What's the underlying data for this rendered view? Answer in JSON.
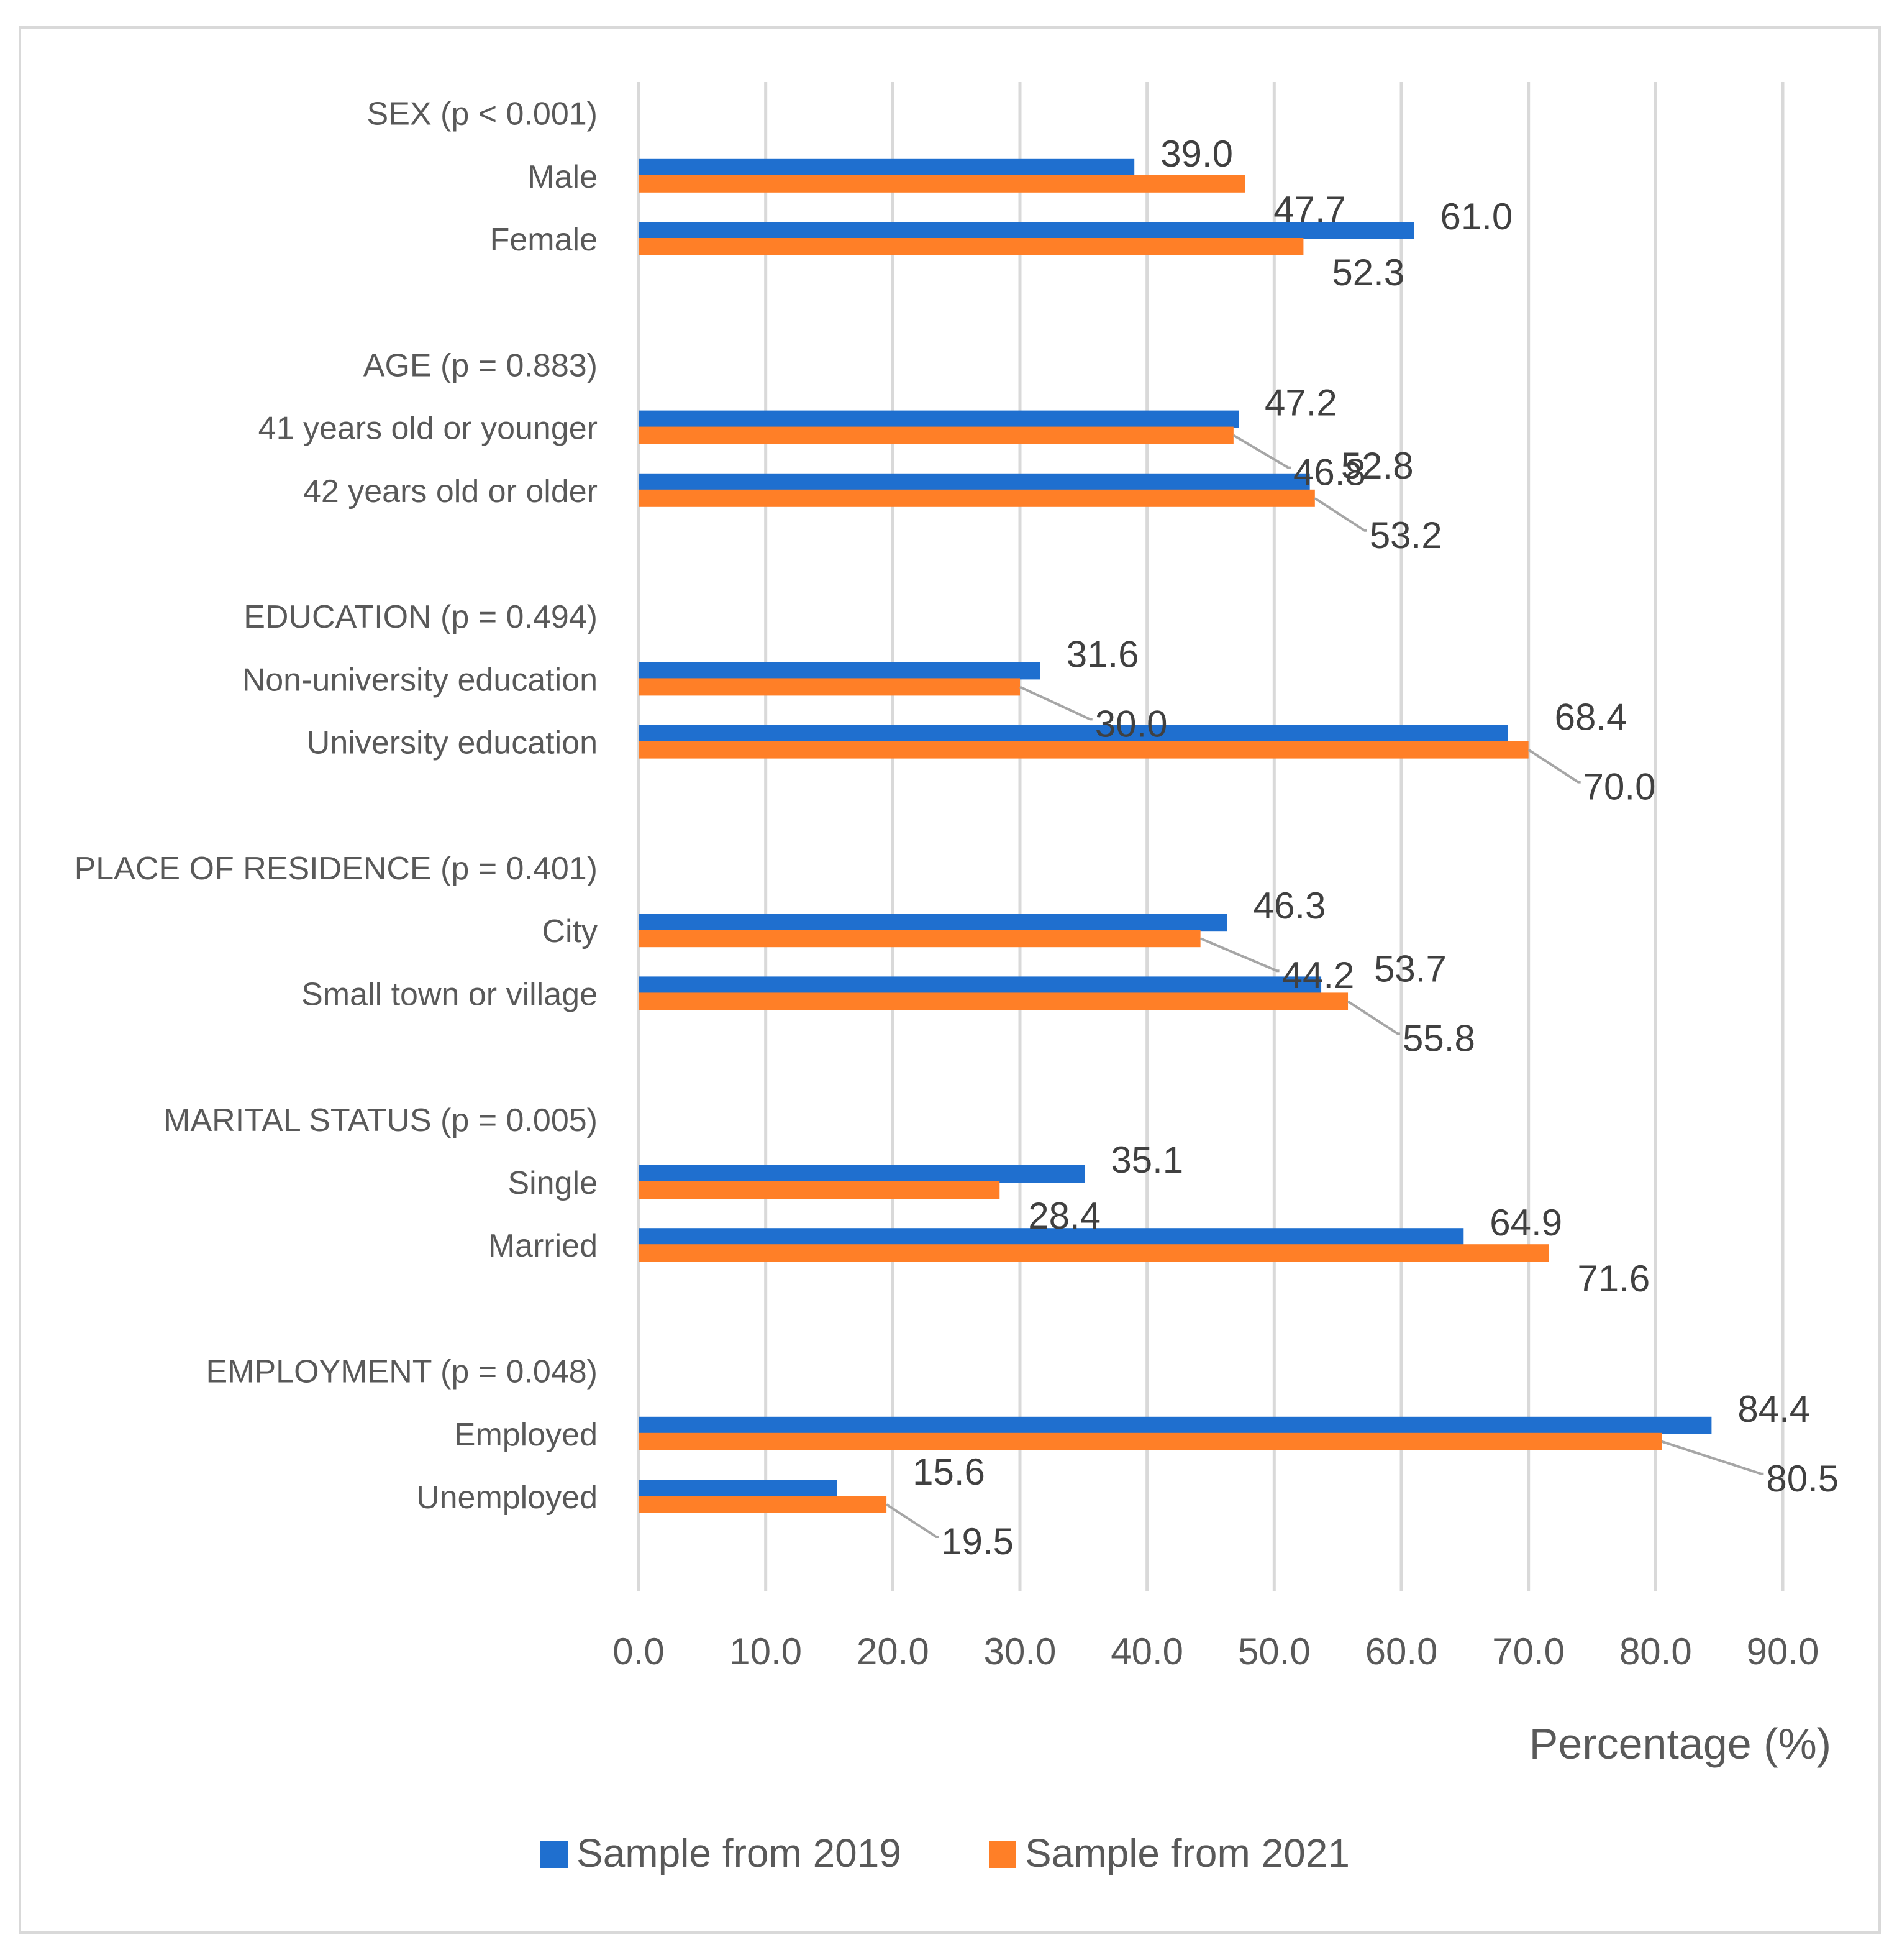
{
  "chart_data": {
    "type": "bar",
    "orientation": "horizontal",
    "xlabel": "Percentage (%)",
    "xlim": [
      0,
      90
    ],
    "xticks": [
      "0.0",
      "10.0",
      "20.0",
      "30.0",
      "40.0",
      "50.0",
      "60.0",
      "70.0",
      "80.0",
      "90.0"
    ],
    "grid": "vertical",
    "legend_position": "bottom",
    "rows": [
      {
        "label": "SEX (p < 0.001)",
        "header": true
      },
      {
        "label": "Male",
        "values": [
          39.0,
          47.7
        ],
        "labels": [
          "39.0",
          "47.7"
        ]
      },
      {
        "label": "Female",
        "values": [
          61.0,
          52.3
        ],
        "labels": [
          "61.0",
          "52.3"
        ]
      },
      {
        "label": "",
        "spacer": true
      },
      {
        "label": "AGE (p = 0.883)",
        "header": true
      },
      {
        "label": "41 years old or younger",
        "values": [
          47.2,
          46.8
        ],
        "labels": [
          "47.2",
          "46.8"
        ]
      },
      {
        "label": "42 years old or older",
        "values": [
          52.8,
          53.2
        ],
        "labels": [
          "52.8",
          "53.2"
        ]
      },
      {
        "label": "",
        "spacer": true
      },
      {
        "label": "EDUCATION (p = 0.494)",
        "header": true
      },
      {
        "label": "Non-university education",
        "values": [
          31.6,
          30.0
        ],
        "labels": [
          "31.6",
          "30.0"
        ]
      },
      {
        "label": "University education",
        "values": [
          68.4,
          70.0
        ],
        "labels": [
          "68.4",
          "70.0"
        ]
      },
      {
        "label": "",
        "spacer": true
      },
      {
        "label": "PLACE OF RESIDENCE (p = 0.401)",
        "header": true
      },
      {
        "label": "City",
        "values": [
          46.3,
          44.2
        ],
        "labels": [
          "46.3",
          "44.2"
        ]
      },
      {
        "label": "Small town or village",
        "values": [
          53.7,
          55.8
        ],
        "labels": [
          "53.7",
          "55.8"
        ]
      },
      {
        "label": "",
        "spacer": true
      },
      {
        "label": "MARITAL STATUS (p = 0.005)",
        "header": true
      },
      {
        "label": "Single",
        "values": [
          35.1,
          28.4
        ],
        "labels": [
          "35.1",
          "28.4"
        ]
      },
      {
        "label": "Married",
        "values": [
          64.9,
          71.6
        ],
        "labels": [
          "64.9",
          "71.6"
        ]
      },
      {
        "label": "",
        "spacer": true
      },
      {
        "label": "EMPLOYMENT (p = 0.048)",
        "header": true
      },
      {
        "label": "Employed",
        "values": [
          84.4,
          80.5
        ],
        "labels": [
          "84.4",
          "80.5"
        ]
      },
      {
        "label": "Unemployed",
        "values": [
          15.6,
          19.5
        ],
        "labels": [
          "15.6",
          "19.5"
        ]
      }
    ],
    "series": [
      {
        "name": "Sample from 2019",
        "color": "#1f6fcf"
      },
      {
        "name": "Sample from 2021",
        "color": "#ff7f27"
      }
    ],
    "gridline_color": "#d9d9d9",
    "leader_line_color": "#a6a6a6"
  }
}
